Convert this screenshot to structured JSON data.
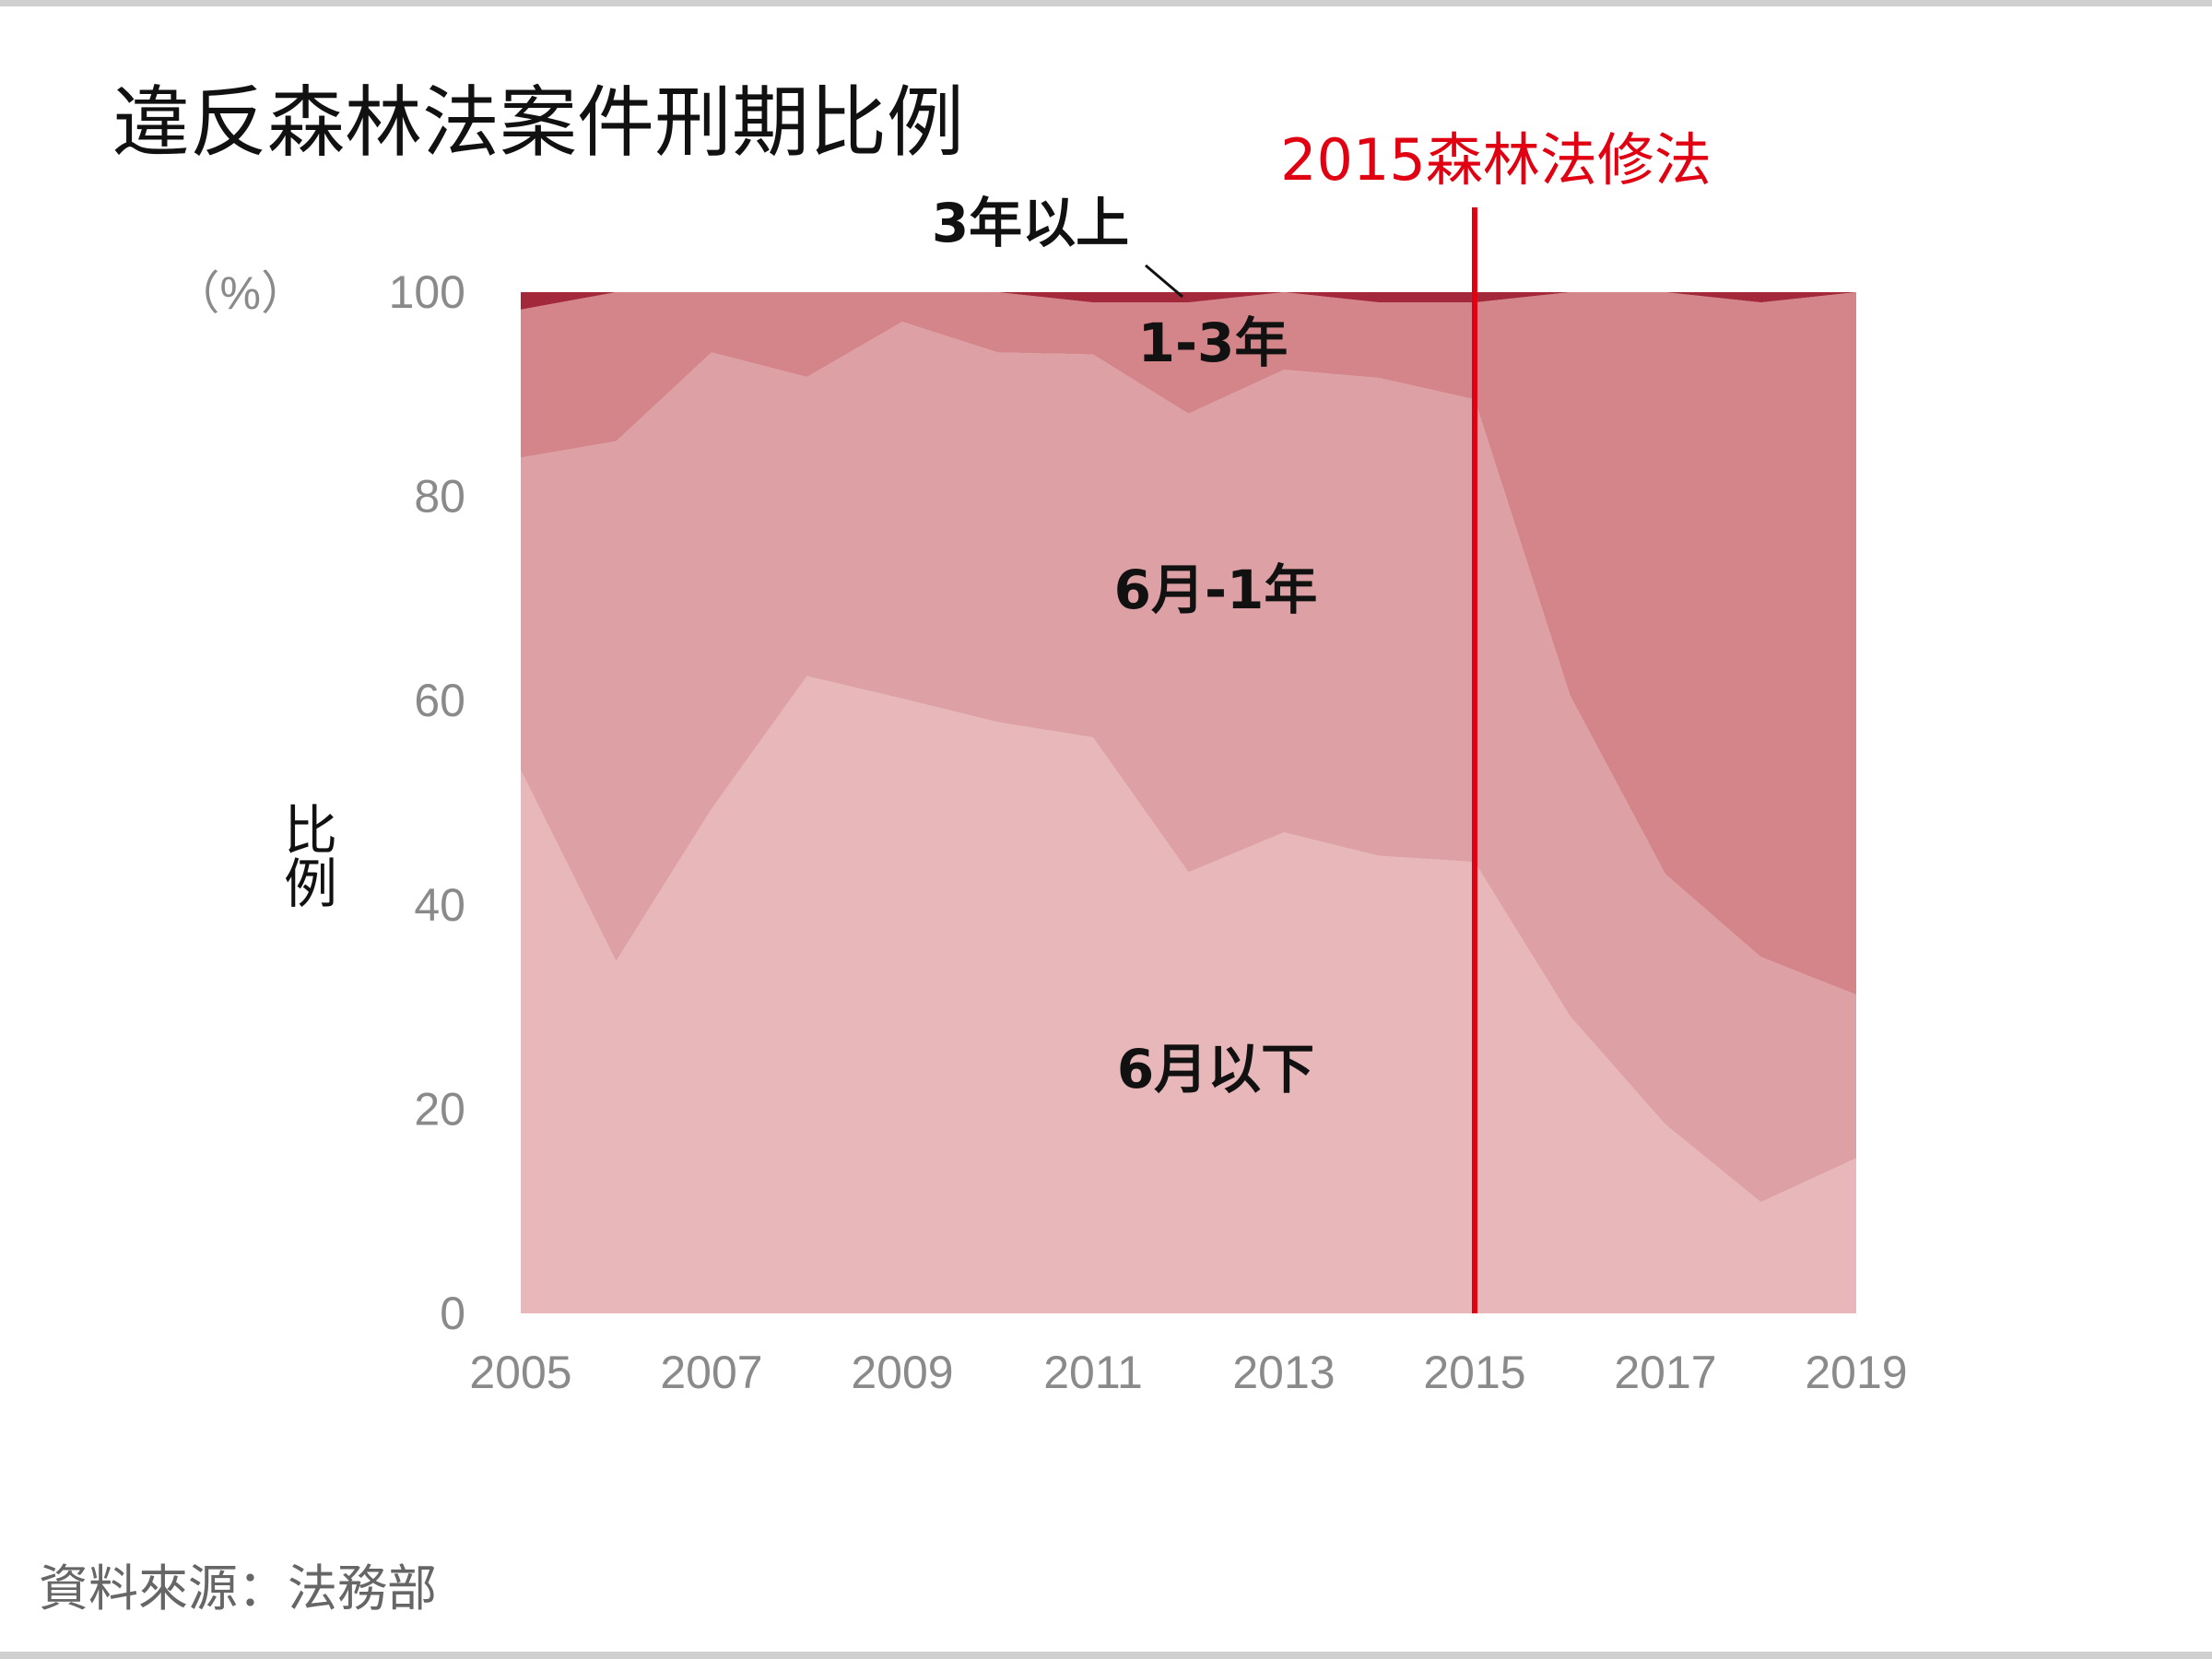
{
  "chart_data": {
    "type": "area",
    "stacked": true,
    "title": "違反森林法案件刑期比例",
    "ylabel": "比例",
    "yunit": "（%）",
    "ylim": [
      0,
      100
    ],
    "x": [
      2005,
      2006,
      2007,
      2008,
      2009,
      2010,
      2011,
      2012,
      2013,
      2014,
      2015,
      2016,
      2017,
      2018,
      2019
    ],
    "xticks": [
      "2005",
      "2007",
      "2009",
      "2011",
      "2013",
      "2015",
      "2017",
      "2019"
    ],
    "yticks": [
      "0",
      "20",
      "40",
      "60",
      "80",
      "100"
    ],
    "series": [
      {
        "name": "6月以下",
        "color": "#e7b7b9",
        "values": [
          53.2,
          34.5,
          49.4,
          62.4,
          60.2,
          57.9,
          56.4,
          43.2,
          47.1,
          44.8,
          44.2,
          29.1,
          18.5,
          10.9,
          15.2
        ]
      },
      {
        "name": "6月-1年",
        "color": "#dda0a4",
        "values": [
          30.6,
          50.9,
          44.7,
          29.3,
          36.9,
          36.2,
          37.5,
          44.9,
          45.3,
          46.8,
          45.3,
          31.4,
          24.5,
          24.0,
          16.0
        ]
      },
      {
        "name": "1-3年",
        "color": "#d38589",
        "values": [
          14.5,
          14.6,
          5.9,
          8.3,
          2.9,
          5.9,
          5.1,
          10.9,
          7.6,
          7.4,
          9.5,
          39.5,
          57.0,
          64.1,
          68.8
        ]
      },
      {
        "name": "3年以上",
        "color": "#a3283a",
        "values": [
          1.7,
          0,
          0,
          0,
          0,
          0,
          1.0,
          1.0,
          0,
          1.0,
          1.0,
          0,
          0,
          1.0,
          0
        ]
      }
    ],
    "annotation": {
      "x": 2015,
      "text": "2015森林法修法",
      "color": "#e00012"
    },
    "source": "資料來源：法務部"
  }
}
